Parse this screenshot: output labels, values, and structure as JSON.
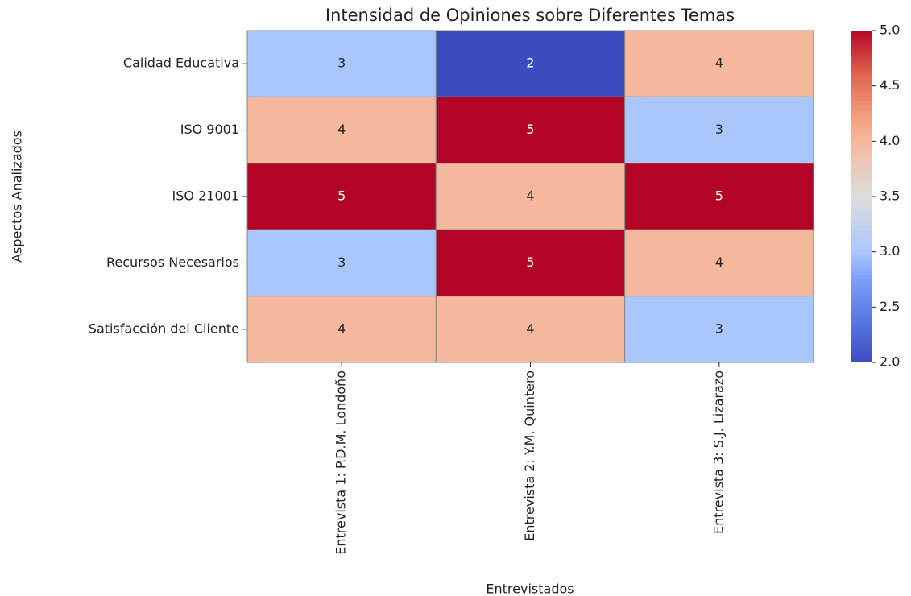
{
  "chart_data": {
    "type": "heatmap",
    "title": "Intensidad de Opiniones sobre Diferentes Temas",
    "x_label": "Entrevistados",
    "y_label": "Aspectos Analizados",
    "x_categories": [
      "Entrevista 1: P.D.M. Londoño",
      "Entrevista 2: Y.M. Quintero",
      "Entrevista 3: S.J. Lizarazo"
    ],
    "y_categories": [
      "Calidad Educativa",
      "ISO 9001",
      "ISO 21001",
      "Recursos Necesarios",
      "Satisfacción del Cliente"
    ],
    "values": [
      [
        3,
        2,
        4
      ],
      [
        4,
        5,
        3
      ],
      [
        5,
        4,
        5
      ],
      [
        3,
        5,
        4
      ],
      [
        4,
        4,
        3
      ]
    ],
    "colormap": "coolwarm",
    "clim": [
      2,
      5
    ],
    "cticks": [
      {
        "value": 2,
        "label": "2.0"
      },
      2.5,
      {
        "value": 3,
        "label": "3.0"
      },
      3.5,
      {
        "value": 4,
        "label": "4.0"
      },
      4.5,
      {
        "value": 5,
        "label": "5.0"
      }
    ]
  }
}
